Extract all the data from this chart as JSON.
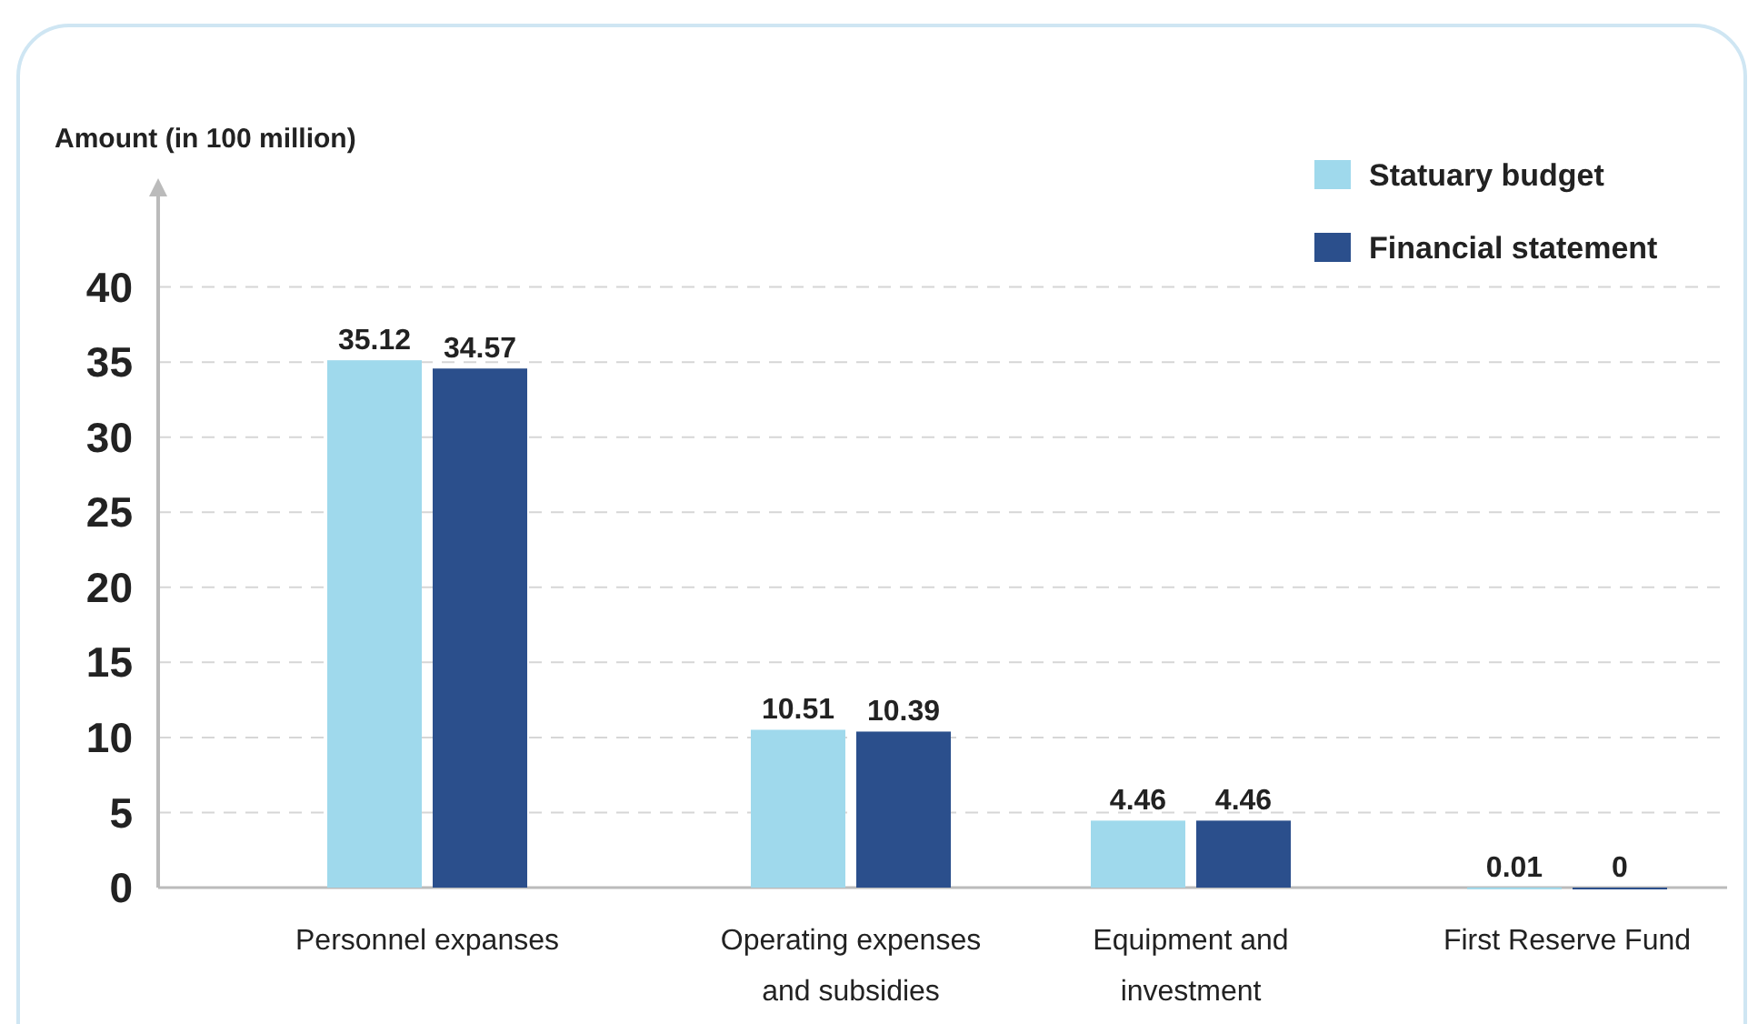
{
  "chart_data": {
    "type": "bar",
    "ylabel": "Amount (in 100 million)",
    "categories": [
      "Personnel expanses",
      "Operating expenses and subsidies",
      "Equipment and investment",
      "First Reserve Fund"
    ],
    "series": [
      {
        "name": "Statuary budget",
        "color": "#9fd9ec",
        "values": [
          35.12,
          10.51,
          4.46,
          0.01
        ]
      },
      {
        "name": "Financial statement",
        "color": "#2b4f8c",
        "values": [
          34.57,
          10.39,
          4.46,
          0
        ]
      }
    ],
    "ylim": [
      0,
      47
    ],
    "yticks": [
      0,
      5,
      10,
      15,
      20,
      25,
      30,
      35,
      40
    ],
    "grid": "y",
    "legend": "top right",
    "data_labels": true
  }
}
